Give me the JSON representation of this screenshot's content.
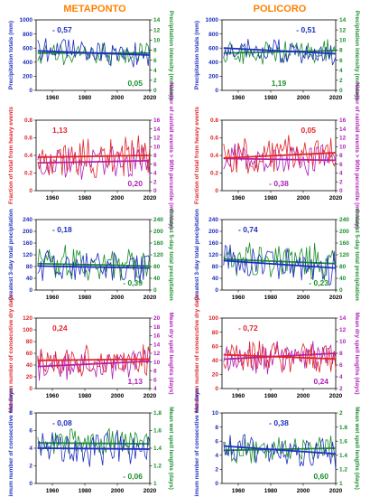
{
  "columns": [
    "METAPONTO",
    "POLICORO"
  ],
  "x_axis": {
    "ticks": [
      1960,
      1980,
      2000,
      2020
    ],
    "range": [
      1950,
      2020
    ]
  },
  "chart_data": [
    {
      "type": "line",
      "column": 0,
      "row": 0,
      "ylabel_left": "Precipitation totals (mm)",
      "ylabel_right": "Precipitation intensity (mm/day)",
      "left": {
        "ylim": [
          0,
          1000
        ],
        "ticks": [
          0,
          200,
          400,
          600,
          800,
          1000
        ],
        "color": "#1f2fbf"
      },
      "right": {
        "ylim": [
          0,
          14
        ],
        "ticks": [
          0,
          2,
          4,
          6,
          8,
          10,
          12,
          14
        ],
        "color": "#1a8f2a"
      },
      "annotations": [
        {
          "text": "- 0,57",
          "color": "#1f2fbf",
          "pos": "top-left"
        },
        {
          "text": "0,05",
          "color": "#1a8f2a",
          "pos": "bottom-right"
        }
      ],
      "series_left": {
        "mean": 540,
        "amp": 170,
        "trend": [
          560,
          500
        ],
        "seed": 11
      },
      "series_right": {
        "mean": 7.4,
        "amp": 2.2,
        "trend": [
          7.4,
          7.4
        ],
        "seed": 12
      }
    },
    {
      "type": "line",
      "column": 1,
      "row": 0,
      "ylabel_left": "Precipitation totals (mm)",
      "ylabel_right": "Precipitation intensity (mm/day)",
      "left": {
        "ylim": [
          0,
          1000
        ],
        "ticks": [
          0,
          200,
          400,
          600,
          800,
          1000
        ],
        "color": "#1f2fbf"
      },
      "right": {
        "ylim": [
          0,
          14
        ],
        "ticks": [
          0,
          2,
          4,
          6,
          8,
          10,
          12,
          14
        ],
        "color": "#1a8f2a"
      },
      "annotations": [
        {
          "text": "- 0,51",
          "color": "#1f2fbf",
          "pos": "top-right"
        },
        {
          "text": "1,19",
          "color": "#1a8f2a",
          "pos": "bottom-center"
        }
      ],
      "series_left": {
        "mean": 570,
        "amp": 160,
        "trend": [
          600,
          520
        ],
        "seed": 21
      },
      "series_right": {
        "mean": 7.6,
        "amp": 2.0,
        "trend": [
          7.4,
          7.9
        ],
        "seed": 22
      }
    },
    {
      "type": "line",
      "column": 0,
      "row": 1,
      "ylabel_left": "Fraction of total from heavy events",
      "ylabel_right": "Number of rainfall events > 90th percentile (mm/day)",
      "left": {
        "ylim": [
          0,
          0.8
        ],
        "ticks": [
          0,
          0.2,
          0.4,
          0.6,
          0.8
        ],
        "color": "#e0242a"
      },
      "right": {
        "ylim": [
          0,
          16
        ],
        "ticks": [
          0,
          2,
          4,
          6,
          8,
          10,
          12,
          14,
          16
        ],
        "color": "#b01fb8"
      },
      "annotations": [
        {
          "text": "1,13",
          "color": "#e0242a",
          "pos": "top-left"
        },
        {
          "text": "0,20",
          "color": "#b01fb8",
          "pos": "bottom-right"
        }
      ],
      "series_left": {
        "mean": 0.38,
        "amp": 0.2,
        "trend": [
          0.38,
          0.4
        ],
        "seed": 31
      },
      "series_right": {
        "mean": 6.5,
        "amp": 3.5,
        "trend": [
          6.3,
          6.8
        ],
        "seed": 32
      }
    },
    {
      "type": "line",
      "column": 1,
      "row": 1,
      "ylabel_left": "Fraction of total from heavy events",
      "ylabel_right": "Number of rainfall events > 90th percentile (mm/day)",
      "left": {
        "ylim": [
          0,
          0.8
        ],
        "ticks": [
          0,
          0.2,
          0.4,
          0.6,
          0.8
        ],
        "color": "#e0242a"
      },
      "right": {
        "ylim": [
          0,
          16
        ],
        "ticks": [
          0,
          2,
          4,
          6,
          8,
          10,
          12,
          14,
          16
        ],
        "color": "#b01fb8"
      },
      "annotations": [
        {
          "text": "0,05",
          "color": "#e0242a",
          "pos": "top-right"
        },
        {
          "text": "- 0,38",
          "color": "#b01fb8",
          "pos": "bottom-center"
        }
      ],
      "series_left": {
        "mean": 0.4,
        "amp": 0.19,
        "trend": [
          0.37,
          0.43
        ],
        "seed": 41
      },
      "series_right": {
        "mean": 7,
        "amp": 3.2,
        "trend": [
          7.3,
          6.9
        ],
        "seed": 42
      }
    },
    {
      "type": "line",
      "column": 0,
      "row": 2,
      "ylabel_left": "Greatest 3-day total precipitation",
      "ylabel_right": "Greatest 5-day total precipitation",
      "left": {
        "ylim": [
          0,
          240
        ],
        "ticks": [
          0,
          40,
          80,
          120,
          160,
          200,
          240
        ],
        "color": "#1f2fbf"
      },
      "right": {
        "ylim": [
          0,
          240
        ],
        "ticks": [
          0,
          40,
          80,
          120,
          160,
          200,
          240
        ],
        "color": "#1a8f2a"
      },
      "annotations": [
        {
          "text": "- 0,18",
          "color": "#1f2fbf",
          "pos": "top-left"
        },
        {
          "text": "- 0,39",
          "color": "#1a8f2a",
          "pos": "bottom-right"
        }
      ],
      "series_left": {
        "mean": 85,
        "amp": 45,
        "trend": [
          82,
          75
        ],
        "seed": 51
      },
      "series_right": {
        "mean": 95,
        "amp": 55,
        "trend": [
          90,
          82
        ],
        "seed": 52
      }
    },
    {
      "type": "line",
      "column": 1,
      "row": 2,
      "ylabel_left": "Greatest 3-day total precipitation",
      "ylabel_right": "Greatest 5-day total precipitation",
      "left": {
        "ylim": [
          0,
          240
        ],
        "ticks": [
          0,
          40,
          80,
          120,
          160,
          200,
          240
        ],
        "color": "#1f2fbf"
      },
      "right": {
        "ylim": [
          0,
          240
        ],
        "ticks": [
          0,
          40,
          80,
          120,
          160,
          200,
          240
        ],
        "color": "#1a8f2a"
      },
      "annotations": [
        {
          "text": "- 0,74",
          "color": "#1f2fbf",
          "pos": "top-left"
        },
        {
          "text": "- 0,23",
          "color": "#1a8f2a",
          "pos": "bottom-right"
        }
      ],
      "series_left": {
        "mean": 92,
        "amp": 50,
        "trend": [
          100,
          75
        ],
        "seed": 61
      },
      "series_right": {
        "mean": 100,
        "amp": 55,
        "trend": [
          105,
          90
        ],
        "seed": 62
      }
    },
    {
      "type": "line",
      "column": 0,
      "row": 3,
      "ylabel_left": "Maximum number of consecutive dry days",
      "ylabel_right": "Mean dry spell lenghts (days)",
      "left": {
        "ylim": [
          0,
          120
        ],
        "ticks": [
          0,
          20,
          40,
          60,
          80,
          100,
          120
        ],
        "color": "#e0242a"
      },
      "right": {
        "ylim": [
          4,
          20
        ],
        "ticks": [
          4,
          6,
          8,
          10,
          12,
          14,
          16,
          18,
          20
        ],
        "color": "#b01fb8"
      },
      "annotations": [
        {
          "text": "0,24",
          "color": "#e0242a",
          "pos": "top-left"
        },
        {
          "text": "1,13",
          "color": "#b01fb8",
          "pos": "bottom-right"
        }
      ],
      "series_left": {
        "mean": 48,
        "amp": 25,
        "trend": [
          48,
          50
        ],
        "seed": 71
      },
      "series_right": {
        "mean": 9.5,
        "amp": 3,
        "trend": [
          9,
          10.2
        ],
        "seed": 72
      }
    },
    {
      "type": "line",
      "column": 1,
      "row": 3,
      "ylabel_left": "Maximum number of consecutive dry days",
      "ylabel_right": "Mean dry spell lengths (days)",
      "left": {
        "ylim": [
          0,
          100
        ],
        "ticks": [
          0,
          20,
          40,
          60,
          80,
          100
        ],
        "color": "#e0242a"
      },
      "right": {
        "ylim": [
          2,
          14
        ],
        "ticks": [
          2,
          4,
          6,
          8,
          10,
          12,
          14
        ],
        "color": "#b01fb8"
      },
      "annotations": [
        {
          "text": "- 0,72",
          "color": "#e0242a",
          "pos": "top-left"
        },
        {
          "text": "0,24",
          "color": "#b01fb8",
          "pos": "bottom-right"
        }
      ],
      "series_left": {
        "mean": 45,
        "amp": 20,
        "trend": [
          48,
          42
        ],
        "seed": 81
      },
      "series_right": {
        "mean": 7.5,
        "amp": 2.5,
        "trend": [
          7,
          8
        ],
        "seed": 82
      }
    },
    {
      "type": "line",
      "column": 0,
      "row": 4,
      "ylabel_left": "Maximum number of consecutive wet days",
      "ylabel_right": "Mean wet spell lengths (days)",
      "left": {
        "ylim": [
          0,
          8
        ],
        "ticks": [
          0,
          2,
          4,
          6,
          8
        ],
        "color": "#1f2fbf"
      },
      "right": {
        "ylim": [
          1,
          1.8
        ],
        "ticks": [
          1,
          1.2,
          1.4,
          1.6,
          1.8
        ],
        "color": "#1a8f2a"
      },
      "annotations": [
        {
          "text": "- 0,08",
          "color": "#1f2fbf",
          "pos": "top-left"
        },
        {
          "text": "- 0,06",
          "color": "#1a8f2a",
          "pos": "bottom-right"
        }
      ],
      "series_left": {
        "mean": 4,
        "amp": 1.8,
        "trend": [
          4,
          3.9
        ],
        "seed": 91
      },
      "series_right": {
        "mean": 1.45,
        "amp": 0.15,
        "trend": [
          1.46,
          1.45
        ],
        "seed": 92
      }
    },
    {
      "type": "line",
      "column": 1,
      "row": 4,
      "ylabel_left": "Maximum number of consecutive wet days",
      "ylabel_right": "Mean wet spell lengths (days)",
      "left": {
        "ylim": [
          0,
          10
        ],
        "ticks": [
          0,
          2,
          4,
          6,
          8,
          10
        ],
        "color": "#1f2fbf"
      },
      "right": {
        "ylim": [
          1,
          2
        ],
        "ticks": [
          1,
          1.2,
          1.4,
          1.6,
          1.8,
          2
        ],
        "color": "#1a8f2a"
      },
      "annotations": [
        {
          "text": "- 0,38",
          "color": "#1f2fbf",
          "pos": "top-center"
        },
        {
          "text": "0,60",
          "color": "#1a8f2a",
          "pos": "bottom-right"
        }
      ],
      "series_left": {
        "mean": 4.8,
        "amp": 2,
        "trend": [
          5.3,
          4.2
        ],
        "seed": 101
      },
      "series_right": {
        "mean": 1.48,
        "amp": 0.17,
        "trend": [
          1.47,
          1.5
        ],
        "seed": 102
      }
    }
  ]
}
